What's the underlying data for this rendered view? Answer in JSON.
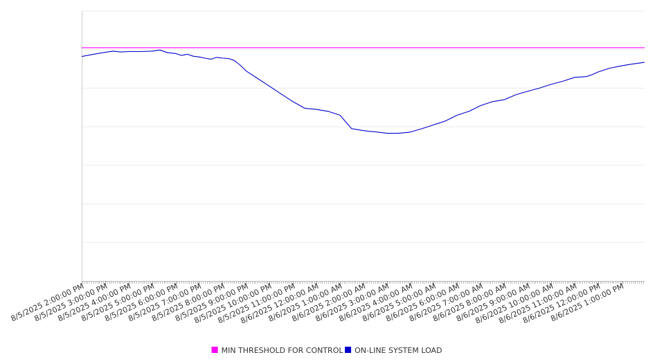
{
  "chart_data": {
    "type": "line",
    "title": "",
    "xlabel": "",
    "ylabel": "",
    "grid": true,
    "legend_position": "bottom-center",
    "x_start": "8/5/2025 2:00:00 PM",
    "x_end": "8/6/2025 1:59:00 PM",
    "x_tick_labels": [
      "8/5/2025 2:00:00 PM",
      "8/5/2025 3:00:00 PM",
      "8/5/2025 4:00:00 PM",
      "8/5/2025 5:00:00 PM",
      "8/5/2025 6:00:00 PM",
      "8/5/2025 7:00:00 PM",
      "8/5/2025 8:00:00 PM",
      "8/5/2025 9:00:00 PM",
      "8/5/2025 10:00:00 PM",
      "8/5/2025 11:00:00 PM",
      "8/6/2025 12:00:00 AM",
      "8/6/2025 1:00:00 AM",
      "8/6/2025 2:00:00 AM",
      "8/6/2025 3:00:00 AM",
      "8/6/2025 4:00:00 AM",
      "8/6/2025 5:00:00 AM",
      "8/6/2025 6:00:00 AM",
      "8/6/2025 7:00:00 AM",
      "8/6/2025 8:00:00 AM",
      "8/6/2025 9:00:00 AM",
      "8/6/2025 10:00:00 AM",
      "8/6/2025 11:00:00 AM",
      "8/6/2025 12:00:00 PM",
      "8/6/2025 1:00:00 PM"
    ],
    "ylim": [
      0,
      7
    ],
    "series": [
      {
        "name": "MIN THRESHOLD FOR CONTROL",
        "color": "#ff00ff",
        "x": [
          "8/5/2025 2:00:00 PM",
          "8/6/2025 1:59:00 PM"
        ],
        "values": [
          6.05,
          6.05
        ]
      },
      {
        "name": "ON-LINE SYSTEM LOAD",
        "color": "#0000cc",
        "x": [
          "8/5/2025 2:00:00 PM",
          "8/5/2025 2:30:00 PM",
          "8/5/2025 3:00:00 PM",
          "8/5/2025 3:20:00 PM",
          "8/5/2025 3:40:00 PM",
          "8/5/2025 4:00:00 PM",
          "8/5/2025 4:30:00 PM",
          "8/5/2025 5:00:00 PM",
          "8/5/2025 5:20:00 PM",
          "8/5/2025 5:40:00 PM",
          "8/5/2025 6:00:00 PM",
          "8/5/2025 6:15:00 PM",
          "8/5/2025 6:30:00 PM",
          "8/5/2025 6:45:00 PM",
          "8/5/2025 7:00:00 PM",
          "8/5/2025 7:15:00 PM",
          "8/5/2025 7:30:00 PM",
          "8/5/2025 7:45:00 PM",
          "8/5/2025 8:00:00 PM",
          "8/5/2025 8:15:00 PM",
          "8/5/2025 8:30:00 PM",
          "8/5/2025 8:45:00 PM",
          "8/5/2025 9:00:00 PM",
          "8/5/2025 9:30:00 PM",
          "8/5/2025 10:00:00 PM",
          "8/5/2025 10:30:00 PM",
          "8/5/2025 11:00:00 PM",
          "8/5/2025 11:30:00 PM",
          "8/6/2025 12:00:00 AM",
          "8/6/2025 12:30:00 AM",
          "8/6/2025 1:00:00 AM",
          "8/6/2025 1:30:00 AM",
          "8/6/2025 2:00:00 AM",
          "8/6/2025 2:15:00 AM",
          "8/6/2025 2:30:00 AM",
          "8/6/2025 3:00:00 AM",
          "8/6/2025 3:30:00 AM",
          "8/6/2025 4:00:00 AM",
          "8/6/2025 4:30:00 AM",
          "8/6/2025 5:00:00 AM",
          "8/6/2025 5:30:00 AM",
          "8/6/2025 6:00:00 AM",
          "8/6/2025 6:30:00 AM",
          "8/6/2025 7:00:00 AM",
          "8/6/2025 7:30:00 AM",
          "8/6/2025 8:00:00 AM",
          "8/6/2025 8:30:00 AM",
          "8/6/2025 9:00:00 AM",
          "8/6/2025 9:30:00 AM",
          "8/6/2025 10:00:00 AM",
          "8/6/2025 10:30:00 AM",
          "8/6/2025 11:00:00 AM",
          "8/6/2025 11:30:00 AM",
          "8/6/2025 11:45:00 AM",
          "8/6/2025 12:00:00 PM",
          "8/6/2025 12:30:00 PM",
          "8/6/2025 1:00:00 PM",
          "8/6/2025 1:30:00 PM",
          "8/6/2025 1:59:00 PM"
        ],
        "values": [
          5.82,
          5.88,
          5.93,
          5.96,
          5.94,
          5.95,
          5.95,
          5.96,
          5.99,
          5.92,
          5.9,
          5.85,
          5.88,
          5.83,
          5.81,
          5.78,
          5.75,
          5.8,
          5.78,
          5.77,
          5.72,
          5.6,
          5.45,
          5.25,
          5.05,
          4.85,
          4.65,
          4.48,
          4.45,
          4.4,
          4.3,
          3.95,
          3.9,
          3.88,
          3.87,
          3.83,
          3.83,
          3.86,
          3.95,
          4.05,
          4.15,
          4.3,
          4.4,
          4.55,
          4.65,
          4.7,
          4.83,
          4.92,
          5.0,
          5.1,
          5.18,
          5.28,
          5.3,
          5.35,
          5.42,
          5.52,
          5.58,
          5.63,
          5.67
        ]
      }
    ]
  }
}
